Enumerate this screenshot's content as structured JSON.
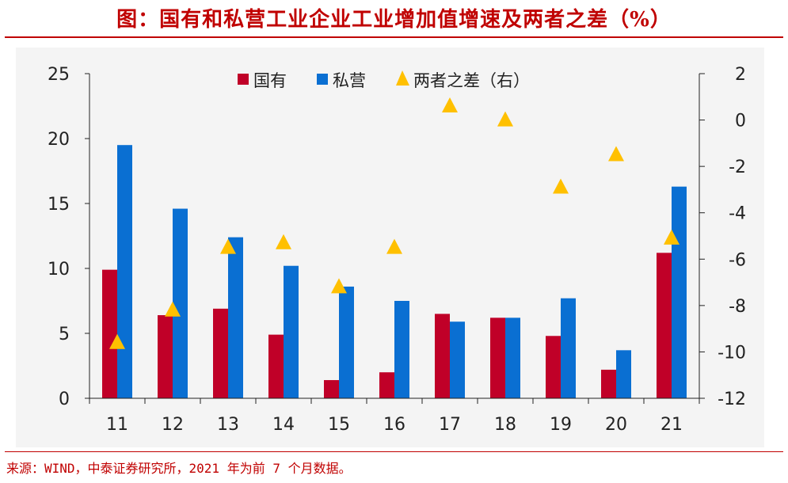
{
  "title": "图：国有和私营工业企业工业增加值增速及两者之差（%）",
  "source": "来源：WIND，中泰证券研究所，2021 年为前 7 个月数据。",
  "colors": {
    "soe": "#c00028",
    "private": "#0a6fd2",
    "diff": "#ffc000",
    "accent": "#c00000"
  },
  "chart_data": {
    "type": "bar",
    "categories": [
      "11",
      "12",
      "13",
      "14",
      "15",
      "16",
      "17",
      "18",
      "19",
      "20",
      "21"
    ],
    "series": [
      {
        "name": "国有",
        "axis": "left",
        "type": "bar",
        "color": "#c00028",
        "values": [
          9.9,
          6.4,
          6.9,
          4.9,
          1.4,
          2.0,
          6.5,
          6.2,
          4.8,
          2.2,
          11.2
        ]
      },
      {
        "name": "私营",
        "axis": "left",
        "type": "bar",
        "color": "#0a6fd2",
        "values": [
          19.5,
          14.6,
          12.4,
          10.2,
          8.6,
          7.5,
          5.9,
          6.2,
          7.7,
          3.7,
          16.3
        ]
      },
      {
        "name": "两者之差（右）",
        "axis": "right",
        "type": "scatter",
        "marker": "triangle",
        "color": "#ffc000",
        "values": [
          -9.6,
          -8.2,
          -5.5,
          -5.3,
          -7.2,
          -5.5,
          0.6,
          0.0,
          -2.9,
          -1.5,
          -5.1
        ]
      }
    ],
    "ylim": [
      0,
      25
    ],
    "y2lim": [
      -12,
      2
    ],
    "yticks": [
      "0",
      "5",
      "10",
      "15",
      "20",
      "25"
    ],
    "y2ticks": [
      "-12",
      "-10",
      "-8",
      "-6",
      "-4",
      "-2",
      "0",
      "2"
    ],
    "legend_position": "top"
  }
}
